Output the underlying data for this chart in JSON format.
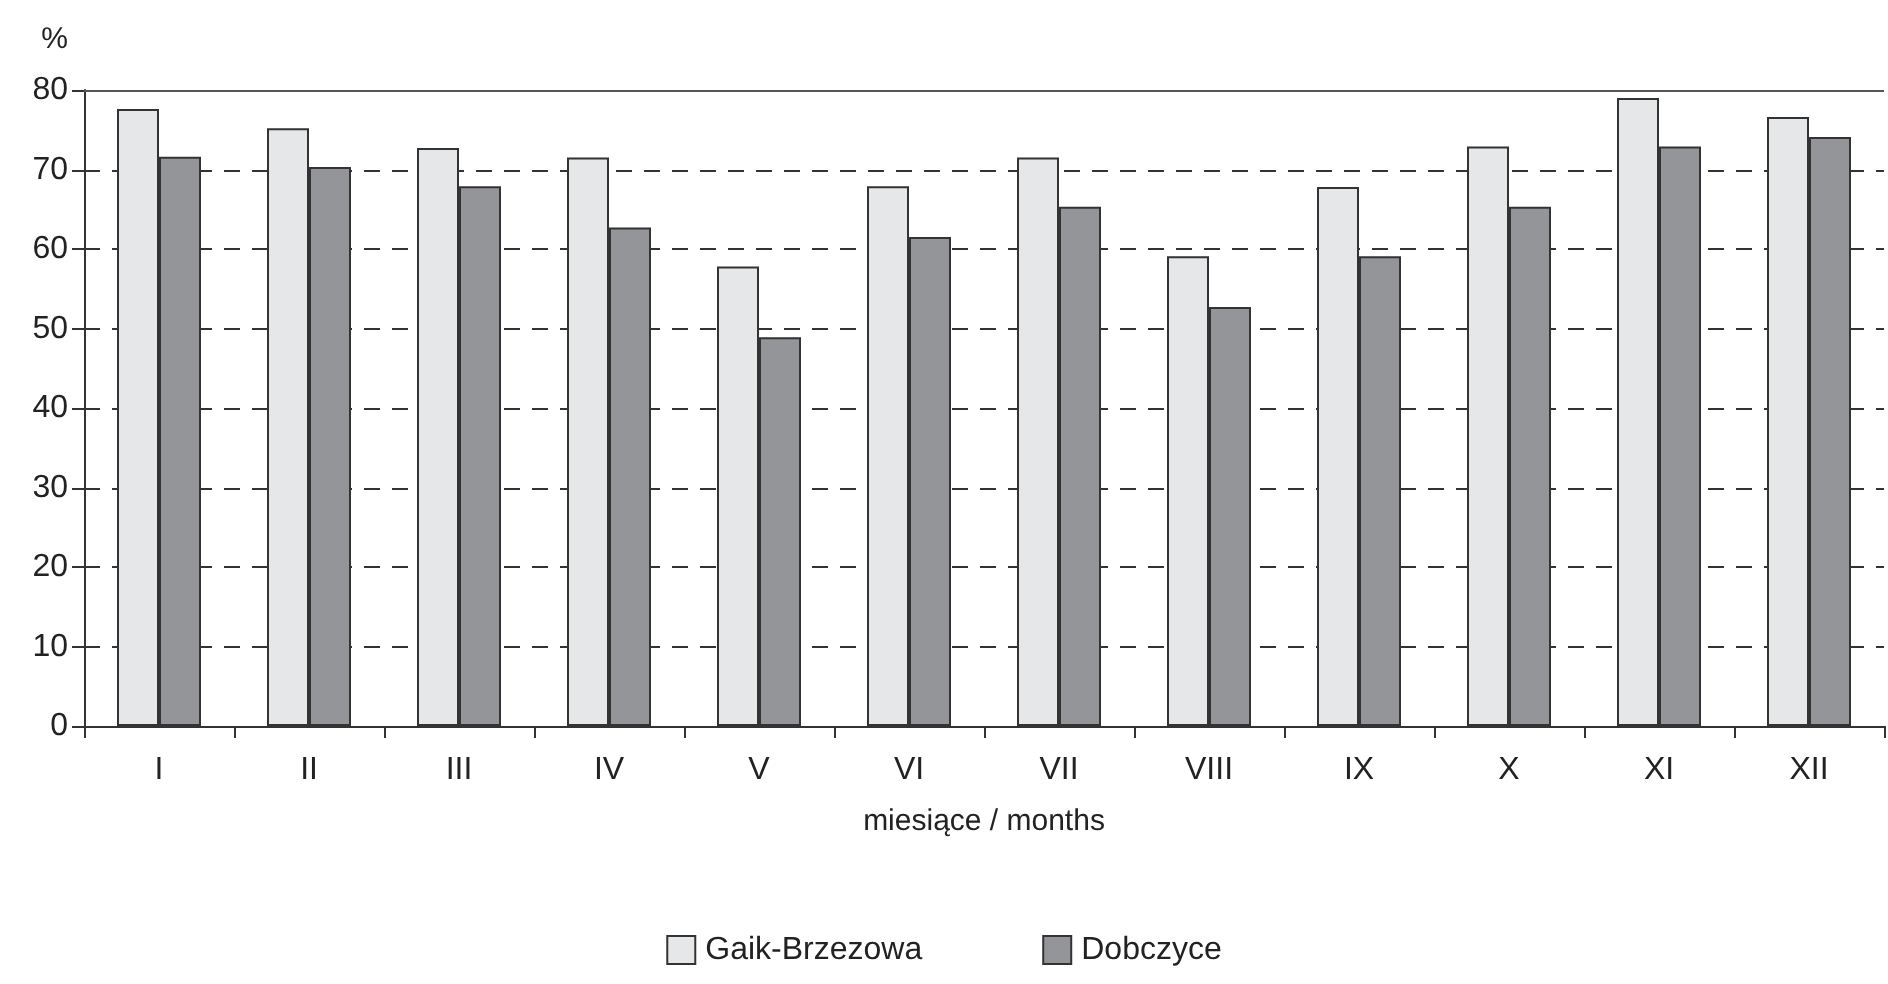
{
  "chart_data": {
    "type": "bar",
    "ylabel": "%",
    "xlabel": "miesiące / months",
    "categories": [
      "I",
      "II",
      "III",
      "IV",
      "V",
      "VI",
      "VII",
      "VIII",
      "IX",
      "X",
      "XI",
      "XII"
    ],
    "series": [
      {
        "name": "Gaik-Brzezowa",
        "color": "#e6e7e9",
        "values": [
          77.6,
          75.2,
          72.7,
          71.5,
          57.8,
          67.9,
          71.5,
          59.1,
          67.8,
          72.9,
          79.0,
          76.6
        ]
      },
      {
        "name": "Dobczyce",
        "color": "#939598",
        "values": [
          71.6,
          70.3,
          67.9,
          62.7,
          48.9,
          61.5,
          65.3,
          52.7,
          59.1,
          65.3,
          72.9,
          74.1
        ]
      }
    ],
    "ylim": [
      0,
      80
    ],
    "yticks": [
      0,
      10,
      20,
      30,
      40,
      50,
      60,
      70,
      80
    ],
    "grid": "y",
    "legend": "bottom"
  }
}
